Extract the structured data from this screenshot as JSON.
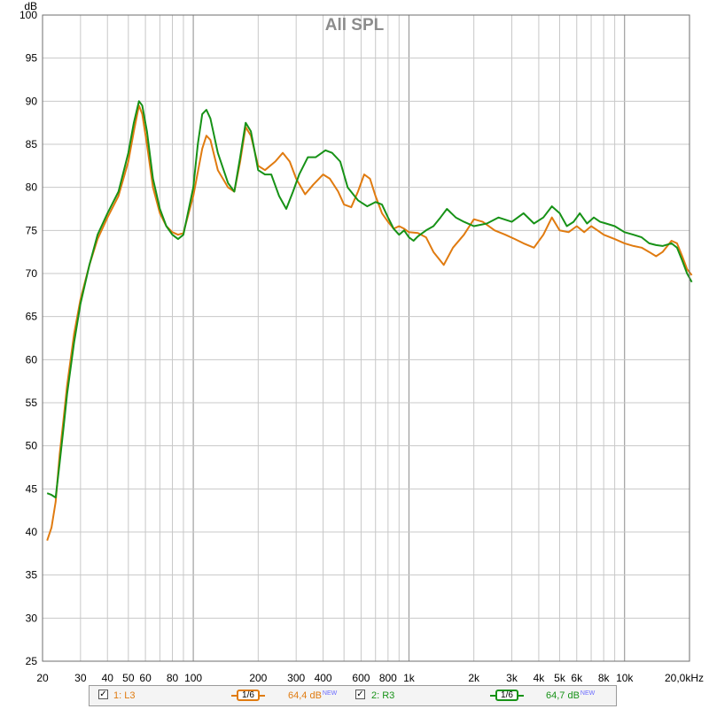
{
  "chart_data": {
    "type": "line",
    "title": "All SPL",
    "y_unit_label": "dB",
    "x_scale": "log",
    "xlim": [
      20,
      20000
    ],
    "ylim": [
      25,
      100
    ],
    "y_ticks": [
      25,
      30,
      35,
      40,
      45,
      50,
      55,
      60,
      65,
      70,
      75,
      80,
      85,
      90,
      95,
      100
    ],
    "x_tick_labels": [
      {
        "x": 20,
        "label": "20"
      },
      {
        "x": 30,
        "label": "30"
      },
      {
        "x": 40,
        "label": "40"
      },
      {
        "x": 50,
        "label": "50"
      },
      {
        "x": 60,
        "label": "60"
      },
      {
        "x": 80,
        "label": "80"
      },
      {
        "x": 100,
        "label": "100"
      },
      {
        "x": 200,
        "label": "200"
      },
      {
        "x": 300,
        "label": "300"
      },
      {
        "x": 400,
        "label": "400"
      },
      {
        "x": 600,
        "label": "600"
      },
      {
        "x": 800,
        "label": "800"
      },
      {
        "x": 1000,
        "label": "1k"
      },
      {
        "x": 2000,
        "label": "2k"
      },
      {
        "x": 3000,
        "label": "3k"
      },
      {
        "x": 4000,
        "label": "4k"
      },
      {
        "x": 5000,
        "label": "5k"
      },
      {
        "x": 6000,
        "label": "6k"
      },
      {
        "x": 8000,
        "label": "8k"
      },
      {
        "x": 10000,
        "label": "10k"
      },
      {
        "x": 20000,
        "label": "20,0kHz"
      }
    ],
    "grid": true,
    "legend_position": "bottom",
    "series": [
      {
        "name": "1: L3",
        "color": "#e07b10",
        "smoothing": "1/6",
        "level": "64,4 dB",
        "points": [
          [
            21,
            39
          ],
          [
            22,
            40.5
          ],
          [
            23,
            43.5
          ],
          [
            24,
            49
          ],
          [
            25,
            53
          ],
          [
            26,
            57
          ],
          [
            28,
            63
          ],
          [
            30,
            67
          ],
          [
            33,
            71
          ],
          [
            36,
            74
          ],
          [
            40,
            76.5
          ],
          [
            45,
            79
          ],
          [
            50,
            83
          ],
          [
            53,
            86.5
          ],
          [
            56,
            89.5
          ],
          [
            58,
            88.5
          ],
          [
            61,
            85
          ],
          [
            65,
            80
          ],
          [
            70,
            77
          ],
          [
            75,
            75.5
          ],
          [
            80,
            74.8
          ],
          [
            85,
            74.5
          ],
          [
            90,
            74.7
          ],
          [
            100,
            79
          ],
          [
            110,
            84.5
          ],
          [
            115,
            86
          ],
          [
            120,
            85.5
          ],
          [
            130,
            82
          ],
          [
            145,
            80
          ],
          [
            155,
            79.5
          ],
          [
            165,
            83
          ],
          [
            175,
            87
          ],
          [
            185,
            86
          ],
          [
            200,
            82.5
          ],
          [
            215,
            82
          ],
          [
            240,
            83
          ],
          [
            260,
            84
          ],
          [
            280,
            83
          ],
          [
            300,
            81
          ],
          [
            330,
            79.2
          ],
          [
            360,
            80.3
          ],
          [
            400,
            81.5
          ],
          [
            430,
            81
          ],
          [
            470,
            79.5
          ],
          [
            500,
            78
          ],
          [
            540,
            77.7
          ],
          [
            580,
            79.5
          ],
          [
            620,
            81.5
          ],
          [
            660,
            81
          ],
          [
            700,
            79
          ],
          [
            750,
            77
          ],
          [
            800,
            76
          ],
          [
            850,
            75.2
          ],
          [
            900,
            75.5
          ],
          [
            950,
            75.2
          ],
          [
            1000,
            74.8
          ],
          [
            1100,
            74.7
          ],
          [
            1200,
            74.2
          ],
          [
            1300,
            72.5
          ],
          [
            1450,
            71
          ],
          [
            1600,
            73
          ],
          [
            1800,
            74.5
          ],
          [
            2000,
            76.3
          ],
          [
            2200,
            76
          ],
          [
            2500,
            75
          ],
          [
            2800,
            74.5
          ],
          [
            3100,
            74
          ],
          [
            3400,
            73.5
          ],
          [
            3800,
            73
          ],
          [
            4200,
            74.5
          ],
          [
            4600,
            76.5
          ],
          [
            5000,
            75
          ],
          [
            5500,
            74.8
          ],
          [
            6000,
            75.5
          ],
          [
            6500,
            74.8
          ],
          [
            7000,
            75.5
          ],
          [
            7500,
            75
          ],
          [
            8000,
            74.5
          ],
          [
            9000,
            74
          ],
          [
            10000,
            73.5
          ],
          [
            11000,
            73.2
          ],
          [
            12000,
            73
          ],
          [
            13000,
            72.5
          ],
          [
            14000,
            72
          ],
          [
            15000,
            72.5
          ],
          [
            16500,
            73.8
          ],
          [
            17500,
            73.5
          ],
          [
            18500,
            72
          ],
          [
            19500,
            70.5
          ],
          [
            20500,
            69.8
          ]
        ]
      },
      {
        "name": "2: R3",
        "color": "#179217",
        "smoothing": "1/6",
        "level": "64,7 dB",
        "points": [
          [
            21,
            44.5
          ],
          [
            22,
            44.3
          ],
          [
            23,
            44
          ],
          [
            24,
            48
          ],
          [
            25,
            52
          ],
          [
            26,
            56
          ],
          [
            28,
            62
          ],
          [
            30,
            66.5
          ],
          [
            33,
            71
          ],
          [
            36,
            74.5
          ],
          [
            40,
            77
          ],
          [
            45,
            79.5
          ],
          [
            50,
            84
          ],
          [
            53,
            87.5
          ],
          [
            56,
            90
          ],
          [
            58,
            89.5
          ],
          [
            61,
            86.5
          ],
          [
            65,
            81
          ],
          [
            70,
            77.5
          ],
          [
            75,
            75.5
          ],
          [
            80,
            74.5
          ],
          [
            85,
            74
          ],
          [
            90,
            74.5
          ],
          [
            100,
            80
          ],
          [
            105,
            85
          ],
          [
            110,
            88.5
          ],
          [
            115,
            89
          ],
          [
            120,
            88
          ],
          [
            130,
            84
          ],
          [
            145,
            80.5
          ],
          [
            155,
            79.5
          ],
          [
            165,
            83.5
          ],
          [
            175,
            87.5
          ],
          [
            185,
            86.5
          ],
          [
            200,
            82
          ],
          [
            215,
            81.5
          ],
          [
            230,
            81.5
          ],
          [
            250,
            79
          ],
          [
            270,
            77.5
          ],
          [
            290,
            79.5
          ],
          [
            310,
            81.5
          ],
          [
            340,
            83.5
          ],
          [
            370,
            83.5
          ],
          [
            410,
            84.3
          ],
          [
            440,
            84
          ],
          [
            480,
            83
          ],
          [
            520,
            80
          ],
          [
            580,
            78.5
          ],
          [
            640,
            77.8
          ],
          [
            700,
            78.3
          ],
          [
            750,
            78
          ],
          [
            800,
            76.5
          ],
          [
            850,
            75.2
          ],
          [
            900,
            74.5
          ],
          [
            950,
            75
          ],
          [
            1000,
            74.2
          ],
          [
            1050,
            73.8
          ],
          [
            1100,
            74.3
          ],
          [
            1200,
            75
          ],
          [
            1300,
            75.5
          ],
          [
            1400,
            76.5
          ],
          [
            1500,
            77.5
          ],
          [
            1650,
            76.5
          ],
          [
            1800,
            76
          ],
          [
            2000,
            75.5
          ],
          [
            2300,
            75.8
          ],
          [
            2600,
            76.5
          ],
          [
            3000,
            76
          ],
          [
            3400,
            77
          ],
          [
            3800,
            75.8
          ],
          [
            4200,
            76.5
          ],
          [
            4600,
            77.8
          ],
          [
            5000,
            77
          ],
          [
            5400,
            75.5
          ],
          [
            5800,
            76
          ],
          [
            6200,
            77
          ],
          [
            6700,
            75.8
          ],
          [
            7200,
            76.5
          ],
          [
            7700,
            76
          ],
          [
            8200,
            75.8
          ],
          [
            9000,
            75.5
          ],
          [
            10000,
            74.8
          ],
          [
            11000,
            74.5
          ],
          [
            12000,
            74.2
          ],
          [
            13000,
            73.5
          ],
          [
            14000,
            73.3
          ],
          [
            15000,
            73.2
          ],
          [
            16500,
            73.5
          ],
          [
            17500,
            73
          ],
          [
            18500,
            71.5
          ],
          [
            19500,
            70
          ],
          [
            20500,
            69
          ]
        ]
      }
    ]
  },
  "legend": {
    "items": [
      {
        "check": "✓",
        "label": "1: L3",
        "smoothing": "1/6",
        "level": "64,4 dB",
        "badge": "NEW"
      },
      {
        "check": "✓",
        "label": "2: R3",
        "smoothing": "1/6",
        "level": "64,7 dB",
        "badge": "NEW"
      }
    ]
  }
}
